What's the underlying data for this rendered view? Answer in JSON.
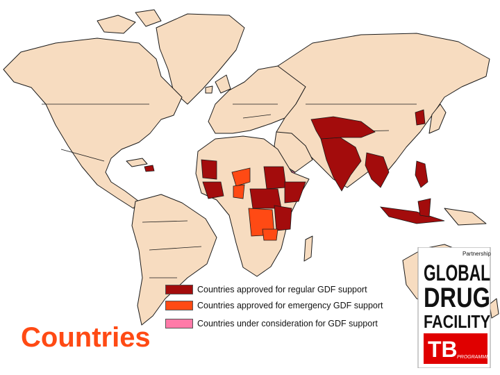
{
  "title": "Countries",
  "colors": {
    "land": "#f7dcc0",
    "regular": "#a30c0c",
    "emergency": "#ff4a14",
    "consideration": "#ff7aa8",
    "title": "#ff4a14"
  },
  "legend": [
    {
      "label": "Countries approved for regular GDF support",
      "color": "#a30c0c"
    },
    {
      "label": "Countries approved for emergency GDF support",
      "color": "#ff4a14"
    },
    {
      "label": "Countries under consideration for GDF support",
      "color": "#ff7aa8"
    }
  ],
  "logo": {
    "top_text": "Partnership",
    "line1": "GLOBAL",
    "line2": "DRUG",
    "line3": "FACILITY",
    "badge": "TB",
    "badge_sub": "PROGRAMME"
  }
}
